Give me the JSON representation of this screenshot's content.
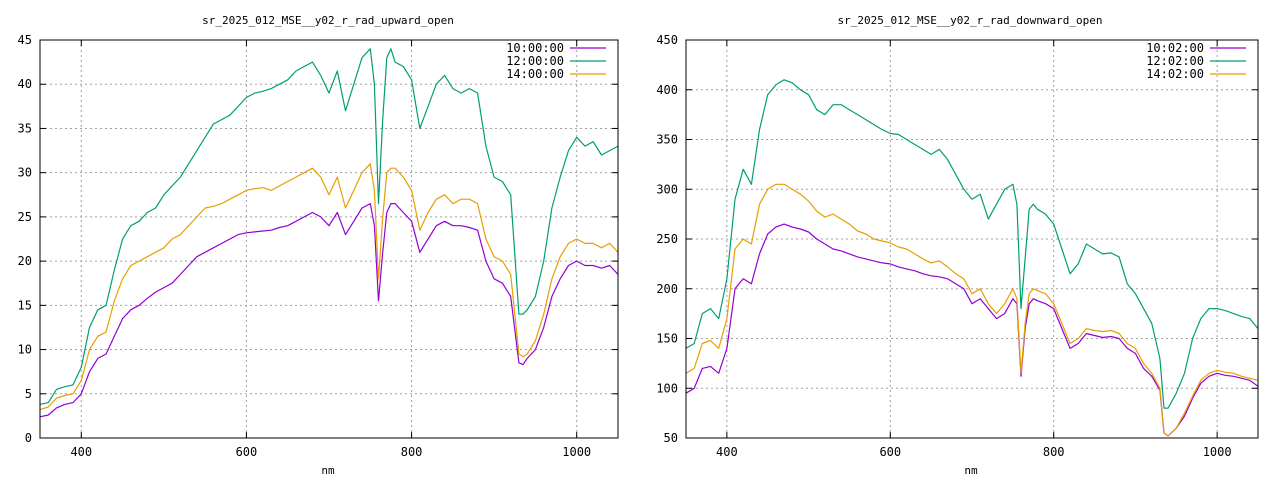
{
  "chart_data": [
    {
      "type": "line",
      "title": "sr_2025_012_MSE__y02_r_rad_upward_open",
      "xlabel": "nm",
      "ylabel": "",
      "xlim": [
        350,
        1050
      ],
      "ylim": [
        0,
        45
      ],
      "xticks": [
        400,
        600,
        800,
        1000
      ],
      "yticks": [
        0,
        5,
        10,
        15,
        20,
        25,
        30,
        35,
        40,
        45
      ],
      "grid": true,
      "legend": "top-right",
      "series": [
        {
          "name": "10:00:00",
          "color": "#9400d3",
          "x": [
            350,
            360,
            370,
            380,
            390,
            400,
            410,
            420,
            430,
            440,
            450,
            460,
            470,
            480,
            490,
            500,
            510,
            520,
            530,
            540,
            550,
            560,
            570,
            580,
            590,
            600,
            610,
            620,
            630,
            640,
            650,
            660,
            670,
            680,
            690,
            700,
            710,
            720,
            730,
            740,
            750,
            755,
            760,
            765,
            770,
            775,
            780,
            790,
            800,
            810,
            820,
            830,
            840,
            850,
            860,
            870,
            880,
            890,
            900,
            910,
            920,
            930,
            935,
            940,
            950,
            960,
            970,
            980,
            990,
            1000,
            1010,
            1020,
            1030,
            1040,
            1050
          ],
          "y": [
            2.4,
            2.6,
            3.4,
            3.8,
            4.0,
            5.0,
            7.5,
            9.0,
            9.5,
            11.5,
            13.5,
            14.5,
            15.0,
            15.8,
            16.5,
            17.0,
            17.5,
            18.5,
            19.5,
            20.5,
            21.0,
            21.5,
            22.0,
            22.5,
            23.0,
            23.2,
            23.3,
            23.4,
            23.5,
            23.8,
            24.0,
            24.5,
            25.0,
            25.5,
            25.0,
            24.0,
            25.5,
            23.0,
            24.5,
            26.0,
            26.5,
            24.0,
            15.5,
            21.0,
            25.5,
            26.5,
            26.5,
            25.5,
            24.5,
            21.0,
            22.5,
            24.0,
            24.5,
            24.0,
            24.0,
            23.8,
            23.5,
            20.0,
            18.0,
            17.5,
            16.0,
            8.5,
            8.3,
            9.0,
            10.0,
            12.5,
            16.0,
            18.0,
            19.5,
            20.0,
            19.5,
            19.5,
            19.2,
            19.5,
            18.5
          ]
        },
        {
          "name": "12:00:00",
          "color": "#009e73",
          "x": [
            350,
            360,
            370,
            380,
            390,
            400,
            410,
            420,
            430,
            440,
            450,
            460,
            470,
            480,
            490,
            500,
            510,
            520,
            530,
            540,
            550,
            560,
            570,
            580,
            590,
            600,
            610,
            620,
            630,
            640,
            650,
            660,
            670,
            680,
            690,
            700,
            710,
            720,
            730,
            740,
            750,
            755,
            760,
            765,
            770,
            775,
            780,
            790,
            800,
            810,
            820,
            830,
            840,
            850,
            860,
            870,
            880,
            890,
            900,
            910,
            920,
            930,
            935,
            940,
            950,
            960,
            970,
            980,
            990,
            1000,
            1010,
            1020,
            1030,
            1040,
            1050
          ],
          "y": [
            3.8,
            4.0,
            5.5,
            5.8,
            6.0,
            8.0,
            12.5,
            14.5,
            15.0,
            19.0,
            22.5,
            24.0,
            24.5,
            25.5,
            26.0,
            27.5,
            28.5,
            29.5,
            31.0,
            32.5,
            34.0,
            35.5,
            36.0,
            36.5,
            37.5,
            38.5,
            39.0,
            39.2,
            39.5,
            40.0,
            40.5,
            41.5,
            42.0,
            42.5,
            41.0,
            39.0,
            41.5,
            37.0,
            40.0,
            43.0,
            44.0,
            40.0,
            26.5,
            36.0,
            43.0,
            44.0,
            42.5,
            42.0,
            40.5,
            35.0,
            37.5,
            40.0,
            41.0,
            39.5,
            39.0,
            39.5,
            39.0,
            33.0,
            29.5,
            29.0,
            27.5,
            14.0,
            14.0,
            14.5,
            16.0,
            20.0,
            26.0,
            29.5,
            32.5,
            34.0,
            33.0,
            33.5,
            32.0,
            32.5,
            33.0
          ]
        },
        {
          "name": "14:00:00",
          "color": "#e69f00",
          "x": [
            350,
            360,
            370,
            380,
            390,
            400,
            410,
            420,
            430,
            440,
            450,
            460,
            470,
            480,
            490,
            500,
            510,
            520,
            530,
            540,
            550,
            560,
            570,
            580,
            590,
            600,
            610,
            620,
            630,
            640,
            650,
            660,
            670,
            680,
            690,
            700,
            710,
            720,
            730,
            740,
            750,
            755,
            760,
            765,
            770,
            775,
            780,
            790,
            800,
            810,
            820,
            830,
            840,
            850,
            860,
            870,
            880,
            890,
            900,
            910,
            920,
            930,
            935,
            940,
            950,
            960,
            970,
            980,
            990,
            1000,
            1010,
            1020,
            1030,
            1040,
            1050
          ],
          "y": [
            3.2,
            3.5,
            4.5,
            4.8,
            5.0,
            6.5,
            10.0,
            11.5,
            12.0,
            15.5,
            18.0,
            19.5,
            20.0,
            20.5,
            21.0,
            21.5,
            22.5,
            23.0,
            24.0,
            25.0,
            26.0,
            26.2,
            26.5,
            27.0,
            27.5,
            28.0,
            28.2,
            28.3,
            28.0,
            28.5,
            29.0,
            29.5,
            30.0,
            30.5,
            29.5,
            27.5,
            29.5,
            26.0,
            28.0,
            30.0,
            31.0,
            28.0,
            18.0,
            25.0,
            30.0,
            30.5,
            30.5,
            29.5,
            28.0,
            23.5,
            25.5,
            27.0,
            27.5,
            26.5,
            27.0,
            27.0,
            26.5,
            22.5,
            20.5,
            20.0,
            18.5,
            9.5,
            9.2,
            9.5,
            11.0,
            14.0,
            18.0,
            20.5,
            22.0,
            22.5,
            22.0,
            22.0,
            21.5,
            22.0,
            21.0
          ]
        }
      ]
    },
    {
      "type": "line",
      "title": "sr_2025_012_MSE__y02_r_rad_downward_open",
      "xlabel": "nm",
      "ylabel": "",
      "xlim": [
        350,
        1050
      ],
      "ylim": [
        50,
        450
      ],
      "xticks": [
        400,
        600,
        800,
        1000
      ],
      "yticks": [
        50,
        100,
        150,
        200,
        250,
        300,
        350,
        400,
        450
      ],
      "grid": true,
      "legend": "top-right",
      "series": [
        {
          "name": "10:02:00",
          "color": "#9400d3",
          "x": [
            350,
            360,
            370,
            380,
            390,
            400,
            410,
            420,
            430,
            440,
            450,
            460,
            470,
            480,
            490,
            500,
            510,
            520,
            530,
            540,
            550,
            560,
            570,
            580,
            590,
            600,
            610,
            620,
            630,
            640,
            650,
            660,
            670,
            680,
            690,
            700,
            710,
            720,
            730,
            740,
            750,
            755,
            760,
            765,
            770,
            775,
            780,
            790,
            800,
            810,
            820,
            830,
            840,
            850,
            860,
            870,
            880,
            890,
            900,
            910,
            920,
            930,
            935,
            940,
            950,
            960,
            970,
            980,
            990,
            1000,
            1010,
            1020,
            1030,
            1040,
            1050
          ],
          "y": [
            95,
            100,
            120,
            122,
            115,
            140,
            200,
            210,
            205,
            235,
            255,
            262,
            265,
            262,
            260,
            257,
            250,
            245,
            240,
            238,
            235,
            232,
            230,
            228,
            226,
            225,
            222,
            220,
            218,
            215,
            213,
            212,
            210,
            205,
            200,
            185,
            190,
            180,
            170,
            175,
            190,
            185,
            112,
            160,
            185,
            190,
            188,
            185,
            180,
            160,
            140,
            145,
            155,
            153,
            151,
            152,
            150,
            140,
            135,
            120,
            112,
            98,
            55,
            52,
            60,
            72,
            90,
            105,
            112,
            115,
            113,
            112,
            110,
            108,
            102
          ]
        },
        {
          "name": "12:02:00",
          "color": "#009e73",
          "x": [
            350,
            360,
            370,
            380,
            390,
            400,
            410,
            420,
            430,
            440,
            450,
            460,
            470,
            480,
            490,
            500,
            510,
            520,
            530,
            540,
            550,
            560,
            570,
            580,
            590,
            600,
            610,
            620,
            630,
            640,
            650,
            660,
            670,
            680,
            690,
            700,
            710,
            720,
            730,
            740,
            750,
            755,
            760,
            765,
            770,
            775,
            780,
            790,
            800,
            810,
            820,
            830,
            840,
            850,
            860,
            870,
            880,
            890,
            900,
            910,
            920,
            930,
            935,
            940,
            950,
            960,
            970,
            980,
            990,
            1000,
            1010,
            1020,
            1030,
            1040,
            1050
          ],
          "y": [
            140,
            145,
            175,
            180,
            170,
            210,
            290,
            320,
            305,
            360,
            395,
            405,
            410,
            407,
            400,
            395,
            380,
            375,
            385,
            385,
            380,
            375,
            370,
            365,
            360,
            356,
            355,
            350,
            345,
            340,
            335,
            340,
            330,
            315,
            300,
            290,
            295,
            270,
            285,
            300,
            305,
            285,
            180,
            230,
            280,
            285,
            280,
            275,
            265,
            240,
            215,
            225,
            245,
            240,
            235,
            236,
            232,
            205,
            195,
            180,
            165,
            130,
            80,
            80,
            95,
            115,
            150,
            170,
            180,
            180,
            178,
            175,
            172,
            170,
            160
          ]
        },
        {
          "name": "14:02:00",
          "color": "#e69f00",
          "x": [
            350,
            360,
            370,
            380,
            390,
            400,
            410,
            420,
            430,
            440,
            450,
            460,
            470,
            480,
            490,
            500,
            510,
            520,
            530,
            540,
            550,
            560,
            570,
            580,
            590,
            600,
            610,
            620,
            630,
            640,
            650,
            660,
            670,
            680,
            690,
            700,
            710,
            720,
            730,
            740,
            750,
            755,
            760,
            765,
            770,
            775,
            780,
            790,
            800,
            810,
            820,
            830,
            840,
            850,
            860,
            870,
            880,
            890,
            900,
            910,
            920,
            930,
            935,
            940,
            950,
            960,
            970,
            980,
            990,
            1000,
            1010,
            1020,
            1030,
            1040,
            1050
          ],
          "y": [
            115,
            120,
            145,
            148,
            140,
            170,
            240,
            250,
            245,
            285,
            300,
            305,
            305,
            300,
            295,
            288,
            278,
            272,
            275,
            270,
            265,
            258,
            255,
            250,
            248,
            246,
            242,
            240,
            235,
            230,
            226,
            228,
            222,
            215,
            210,
            195,
            200,
            185,
            175,
            185,
            200,
            190,
            115,
            165,
            195,
            200,
            198,
            195,
            185,
            165,
            145,
            150,
            160,
            158,
            157,
            158,
            155,
            145,
            140,
            125,
            115,
            100,
            55,
            52,
            60,
            75,
            92,
            108,
            115,
            118,
            116,
            115,
            112,
            110,
            108
          ]
        }
      ]
    }
  ]
}
